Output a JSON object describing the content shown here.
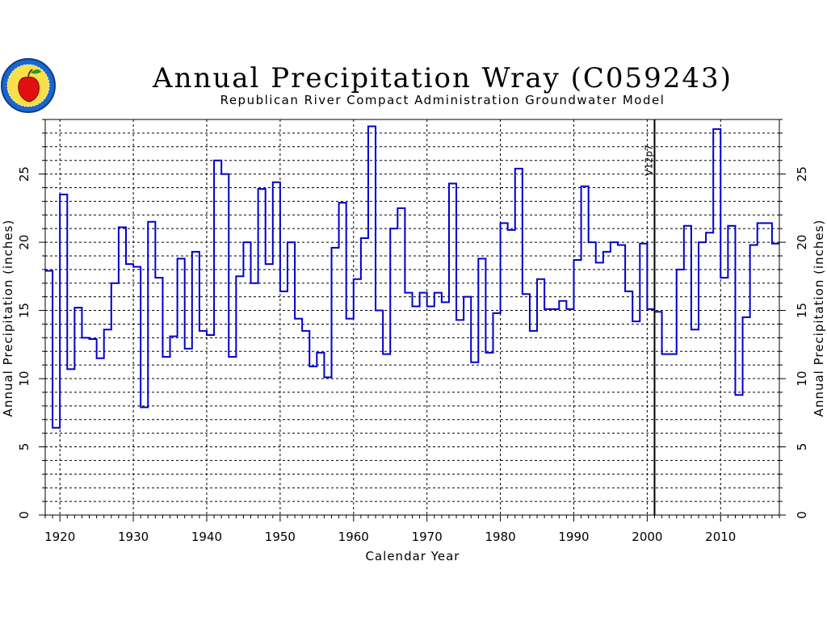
{
  "chart_data": {
    "type": "step",
    "title": "Annual Precipitation Wray (C059243)",
    "subtitle": "Republican River Compact Administration Groundwater Model",
    "xlabel": "Calendar Year",
    "ylabel": "Annual Precipitation (inches)",
    "ylabel_right": "Annual Precipitation (inches)",
    "xlim": [
      1918,
      2018
    ],
    "ylim": [
      0,
      29
    ],
    "x_ticks": [
      1920,
      1930,
      1940,
      1950,
      1960,
      1970,
      1980,
      1990,
      2000,
      2010
    ],
    "y_ticks": [
      0,
      5,
      10,
      15,
      20,
      25
    ],
    "grid": true,
    "annotation": {
      "x": 2001,
      "label": "V12p7"
    },
    "series_color": "#0000cc",
    "years": [
      1918,
      1919,
      1920,
      1921,
      1922,
      1923,
      1924,
      1925,
      1926,
      1927,
      1928,
      1929,
      1930,
      1931,
      1932,
      1933,
      1934,
      1935,
      1936,
      1937,
      1938,
      1939,
      1940,
      1941,
      1942,
      1943,
      1944,
      1945,
      1946,
      1947,
      1948,
      1949,
      1950,
      1951,
      1952,
      1953,
      1954,
      1955,
      1956,
      1957,
      1958,
      1959,
      1960,
      1961,
      1962,
      1963,
      1964,
      1965,
      1966,
      1967,
      1968,
      1969,
      1970,
      1971,
      1972,
      1973,
      1974,
      1975,
      1976,
      1977,
      1978,
      1979,
      1980,
      1981,
      1982,
      1983,
      1984,
      1985,
      1986,
      1987,
      1988,
      1989,
      1990,
      1991,
      1992,
      1993,
      1994,
      1995,
      1996,
      1997,
      1998,
      1999,
      2000,
      2001,
      2002,
      2003,
      2004,
      2005,
      2006,
      2007,
      2008,
      2009,
      2010,
      2011,
      2012,
      2013,
      2014,
      2015,
      2016,
      2017
    ],
    "values": [
      17.9,
      6.4,
      23.5,
      10.7,
      15.2,
      13.0,
      12.9,
      11.5,
      13.6,
      17.0,
      21.1,
      18.4,
      18.2,
      7.9,
      21.5,
      17.4,
      11.6,
      13.1,
      18.8,
      12.2,
      19.3,
      13.5,
      13.2,
      26.0,
      25.0,
      11.6,
      17.5,
      20.0,
      17.0,
      23.9,
      18.4,
      24.4,
      16.4,
      20.0,
      14.4,
      13.5,
      10.9,
      11.9,
      10.1,
      19.6,
      22.9,
      14.4,
      17.3,
      20.3,
      28.5,
      15.0,
      11.8,
      21.0,
      22.5,
      16.3,
      15.3,
      16.3,
      15.3,
      16.3,
      15.6,
      24.3,
      14.3,
      16.0,
      11.2,
      18.8,
      11.9,
      14.8,
      21.4,
      20.9,
      25.4,
      16.2,
      13.5,
      17.3,
      15.1,
      15.1,
      15.7,
      15.1,
      18.7,
      24.1,
      20.0,
      18.5,
      19.3,
      20.0,
      19.8,
      16.4,
      14.2,
      19.9,
      15.1,
      14.9,
      11.8,
      11.8,
      18.0,
      21.2,
      13.6,
      20.0,
      20.7,
      28.3,
      17.4,
      21.2,
      8.8,
      14.5,
      19.8,
      21.4,
      21.4,
      19.9
    ]
  }
}
